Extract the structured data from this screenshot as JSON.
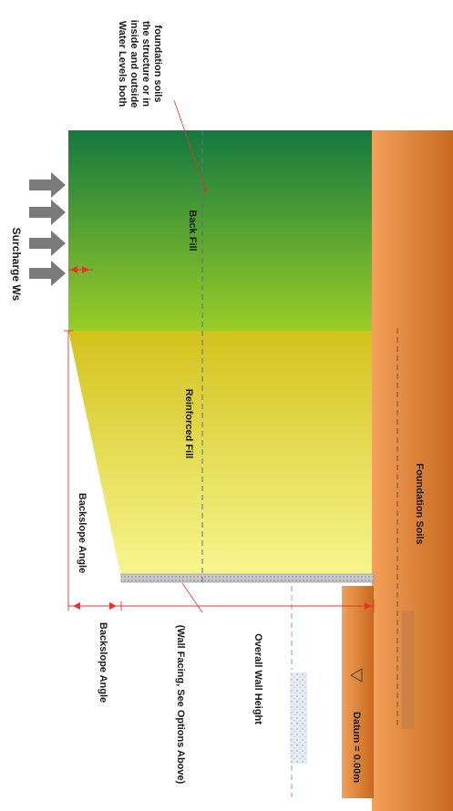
{
  "labels": {
    "surcharge": "Surcharge Ws",
    "water_levels": [
      "Water Levels both",
      "inside and outside",
      "the structure or in",
      "foundation soils"
    ],
    "back_fill": "Back Fill",
    "reinforced_fill": "Reinforced Fill",
    "backslope_angle_top": "Backslope Angle",
    "backslope_angle_left": "Backslope Angle",
    "wall_facing": "(Wall Facing, See Options Above)",
    "overall_wall_height": "Overall Wall Height",
    "datum": "Datum = 0.00m",
    "foundation_soils": "Foundation Soils"
  },
  "colors": {
    "foundation_top": "#f2a05a",
    "foundation_bottom": "#c76a1e",
    "backfill_dark": "#13793f",
    "backfill_light": "#9bcc26",
    "reinforced_top": "#d2c21c",
    "reinforced_bottom": "#f8f690",
    "dimension_line": "#e8332c",
    "arrow": "#7a7a7a",
    "facing": "#b8b8b8"
  }
}
